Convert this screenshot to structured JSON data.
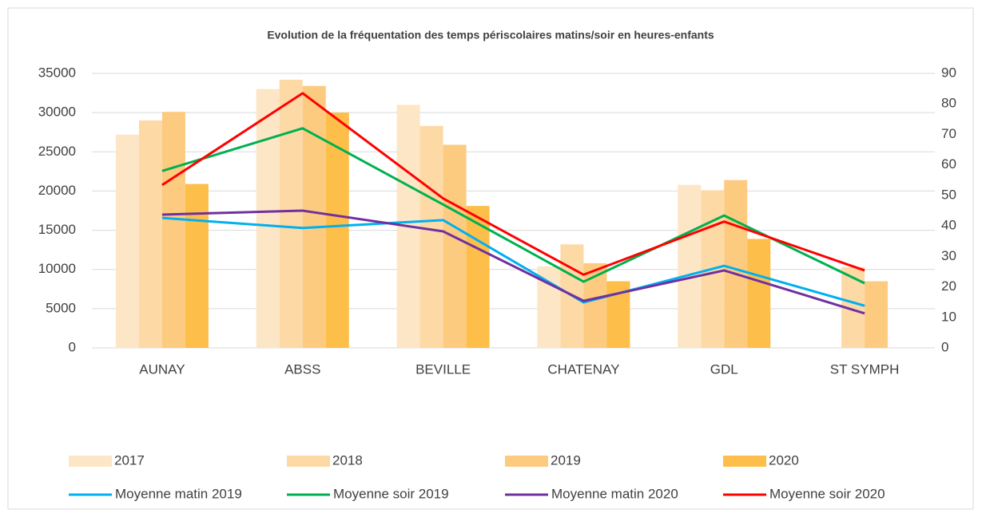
{
  "chart_data": {
    "type": "bar",
    "title": "Evolution de la fréquentation des temps périscolaires matins/soir en heures-enfants",
    "categories": [
      "AUNAY",
      "ABSS",
      "BEVILLE",
      "CHATENAY",
      "GDL",
      "ST SYMPH"
    ],
    "series": [
      {
        "name": "2017",
        "type": "bar",
        "color": "#fde6c6",
        "values": [
          27200,
          33000,
          31000,
          10400,
          20800,
          null
        ]
      },
      {
        "name": "2018",
        "type": "bar",
        "color": "#fdd9a6",
        "values": [
          29000,
          34200,
          28300,
          13200,
          20100,
          10300
        ]
      },
      {
        "name": "2019",
        "type": "bar",
        "color": "#fdcb80",
        "values": [
          30100,
          33400,
          25900,
          10800,
          21400,
          8500
        ]
      },
      {
        "name": "2020",
        "type": "bar",
        "color": "#fdbf4a",
        "values": [
          20900,
          30000,
          18100,
          8500,
          13900,
          null
        ]
      },
      {
        "name": "Moyenne matin 2019",
        "type": "line",
        "axis": "y2",
        "color": "#00b0f0",
        "values": [
          42.6,
          39.3,
          41.9,
          14.9,
          26.9,
          13.8
        ]
      },
      {
        "name": "Moyenne soir 2019",
        "type": "line",
        "axis": "y2",
        "color": "#00b050",
        "values": [
          58,
          72,
          47,
          21.7,
          43.4,
          21.2
        ]
      },
      {
        "name": "Moyenne matin 2020",
        "type": "line",
        "axis": "y2",
        "color": "#7030a0",
        "values": [
          43.7,
          45,
          38.2,
          15.4,
          25.4,
          11.3
        ]
      },
      {
        "name": "Moyenne soir 2020",
        "type": "line",
        "axis": "y2",
        "color": "#ff0000",
        "values": [
          53.4,
          83.5,
          49,
          24,
          41.4,
          25.4
        ]
      }
    ],
    "ylim": [
      0,
      35000
    ],
    "yticks": [
      0,
      5000,
      10000,
      15000,
      20000,
      25000,
      30000,
      35000
    ],
    "y2lim": [
      0,
      90
    ],
    "y2ticks": [
      0,
      10,
      20,
      30,
      40,
      50,
      60,
      70,
      80,
      90
    ],
    "grid": true
  }
}
